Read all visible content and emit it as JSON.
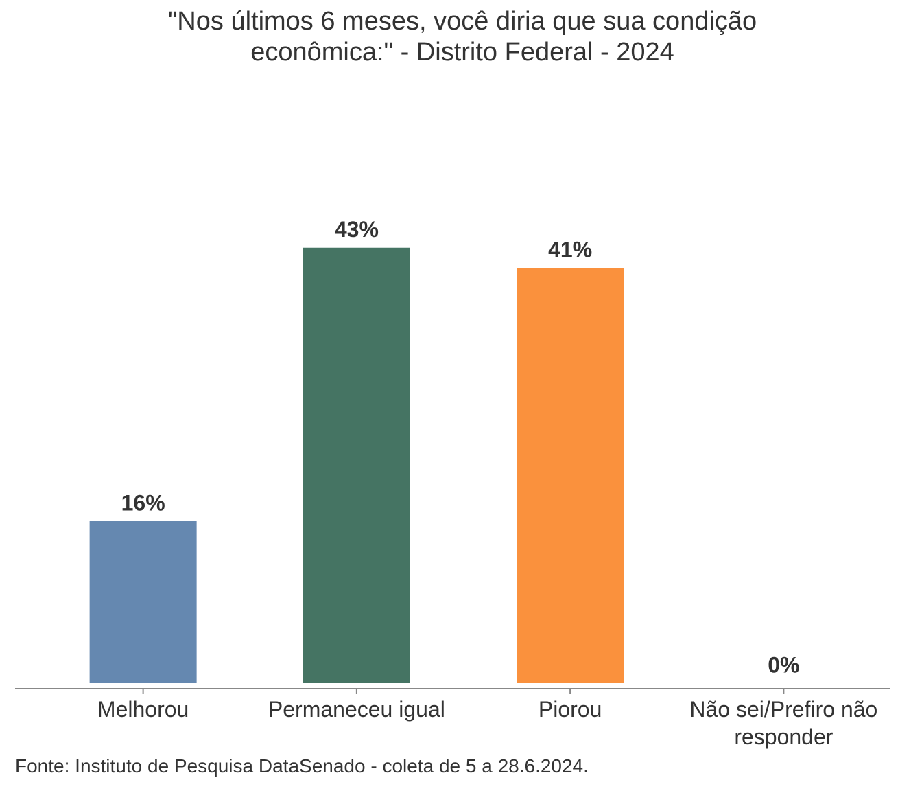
{
  "chart_data": {
    "type": "bar",
    "title": [
      "\"Nos últimos 6 meses, você diria que sua condição",
      "econômica:\" - Distrito Federal - 2024"
    ],
    "categories": [
      "Melhorou",
      "Permaneceu igual",
      "Piorou",
      "Não sei/Prefiro não responder"
    ],
    "values": [
      16,
      43,
      41,
      0
    ],
    "value_labels": [
      "16%",
      "43%",
      "41%",
      "0%"
    ],
    "colors": [
      "#6588b0",
      "#457463",
      "#fa913d",
      "#999999"
    ],
    "source": "Fonte: Instituto de Pesquisa DataSenado - coleta de 5 a 28.6.2024."
  }
}
